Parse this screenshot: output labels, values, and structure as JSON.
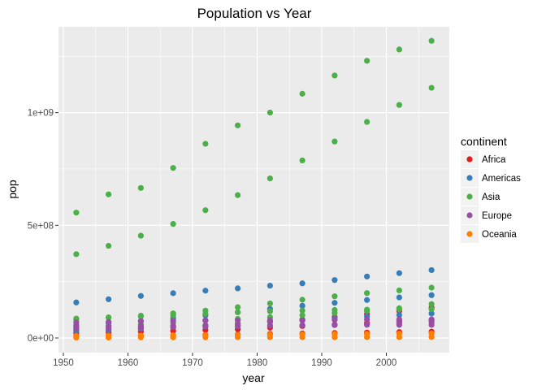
{
  "chart_data": {
    "type": "scatter",
    "title": "Population vs Year",
    "xlabel": "year",
    "ylabel": "pop",
    "xlim": [
      1949.25,
      2009.75
    ],
    "ylim": [
      -65000000,
      1381000000
    ],
    "x_ticks": [
      {
        "value": 1950,
        "label": "1950"
      },
      {
        "value": 1960,
        "label": "1960"
      },
      {
        "value": 1970,
        "label": "1970"
      },
      {
        "value": 1980,
        "label": "1980"
      },
      {
        "value": 1990,
        "label": "1990"
      },
      {
        "value": 2000,
        "label": "2000"
      }
    ],
    "y_ticks": [
      {
        "value": 0,
        "label": "0e+00"
      },
      {
        "value": 500000000,
        "label": "5e+08"
      },
      {
        "value": 1000000000,
        "label": "1e+09"
      }
    ],
    "grid": true,
    "legend_position": "right",
    "legend_title": "continent",
    "colors": {
      "Africa": "#e41a1c",
      "Americas": "#377eb8",
      "Asia": "#4daf4a",
      "Europe": "#984ea3",
      "Oceania": "#ff7f00",
      "panel": "#ebebeb",
      "grid_major": "#ffffff"
    },
    "series": [
      {
        "name": "Africa",
        "x": [
          1952,
          1952,
          1952,
          1957,
          1957,
          1957,
          1962,
          1962,
          1962,
          1967,
          1967,
          1967,
          1972,
          1972,
          1972,
          1977,
          1977,
          1977,
          1982,
          1982,
          1982,
          1987,
          1987,
          1987,
          1992,
          1992,
          1992,
          1997,
          1997,
          1997,
          2002,
          2002,
          2002,
          2007,
          2007,
          2007
        ],
        "y": [
          33100000,
          22200000,
          9000000,
          37000000,
          25000000,
          10000000,
          41900000,
          28200000,
          11000000,
          47300000,
          31700000,
          12300000,
          53700000,
          35600000,
          14000000,
          62200000,
          38800000,
          16000000,
          73000000,
          45700000,
          18000000,
          81600000,
          52800000,
          20000000,
          93400000,
          59400000,
          22000000,
          106200000,
          66100000,
          24000000,
          119900000,
          73300000,
          26000000,
          135000000,
          80300000,
          28000000
        ]
      },
      {
        "name": "Americas",
        "x": [
          1952,
          1952,
          1952,
          1957,
          1957,
          1957,
          1962,
          1962,
          1962,
          1967,
          1967,
          1967,
          1972,
          1972,
          1972,
          1977,
          1977,
          1977,
          1982,
          1982,
          1982,
          1987,
          1987,
          1987,
          1992,
          1992,
          1992,
          1997,
          1997,
          1997,
          2002,
          2002,
          2002,
          2007,
          2007,
          2007
        ],
        "y": [
          157600000,
          56600000,
          30100000,
          171900000,
          65600000,
          35000000,
          186500000,
          76000000,
          41100000,
          198700000,
          88000000,
          47900000,
          209900000,
          100800000,
          55300000,
          220200000,
          114300000,
          63800000,
          232200000,
          128900000,
          71600000,
          242300000,
          142900000,
          80100000,
          256900000,
          155900000,
          88100000,
          272900000,
          168500000,
          95900000,
          287700000,
          179900000,
          102500000,
          301100000,
          190000000,
          108700000
        ]
      },
      {
        "name": "Asia",
        "x": [
          1952,
          1952,
          1952,
          1952,
          1952,
          1957,
          1957,
          1957,
          1957,
          1957,
          1962,
          1962,
          1962,
          1962,
          1962,
          1967,
          1967,
          1967,
          1967,
          1967,
          1972,
          1972,
          1972,
          1972,
          1972,
          1977,
          1977,
          1977,
          1977,
          1977,
          1982,
          1982,
          1982,
          1982,
          1982,
          1987,
          1987,
          1987,
          1987,
          1987,
          1992,
          1992,
          1992,
          1992,
          1992,
          1997,
          1997,
          1997,
          1997,
          1997,
          2002,
          2002,
          2002,
          2002,
          2002,
          2007,
          2007,
          2007,
          2007,
          2007
        ],
        "y": [
          556300000,
          372000000,
          86100000,
          82100000,
          46900000,
          637400000,
          409000000,
          91600000,
          90000000,
          53500000,
          665800000,
          454000000,
          95800000,
          99000000,
          60600000,
          754600000,
          506000000,
          100800000,
          109300000,
          67600000,
          862000000,
          567000000,
          107200000,
          121300000,
          76600000,
          943500000,
          634000000,
          113900000,
          136700000,
          84400000,
          1000300000,
          708000000,
          118500000,
          153300000,
          92300000,
          1084000000,
          788000000,
          122100000,
          169900000,
          101300000,
          1164900000,
          872000000,
          124300000,
          184800000,
          110800000,
          1230100000,
          959000000,
          125300000,
          199300000,
          120000000,
          1280400000,
          1034200000,
          127100000,
          211100000,
          132000000,
          1318700000,
          1110400000,
          127500000,
          223500000,
          150400000
        ]
      },
      {
        "name": "Europe",
        "x": [
          1952,
          1952,
          1952,
          1957,
          1957,
          1957,
          1962,
          1962,
          1962,
          1967,
          1967,
          1967,
          1972,
          1972,
          1972,
          1977,
          1977,
          1977,
          1982,
          1982,
          1982,
          1987,
          1987,
          1987,
          1992,
          1992,
          1992,
          1997,
          1997,
          1997,
          2002,
          2002,
          2002,
          2007,
          2007,
          2007
        ],
        "y": [
          69100000,
          50400000,
          42500000,
          71000000,
          51400000,
          44300000,
          73700000,
          52500000,
          46100000,
          76400000,
          54700000,
          47600000,
          78700000,
          56100000,
          49700000,
          78200000,
          56300000,
          51400000,
          78300000,
          56300000,
          53800000,
          77700000,
          56700000,
          56000000,
          80600000,
          57300000,
          58500000,
          82000000,
          58400000,
          61800000,
          82300000,
          58100000,
          66900000,
          82400000,
          58200000,
          71200000
        ]
      },
      {
        "name": "Oceania",
        "x": [
          1952,
          1952,
          1957,
          1957,
          1962,
          1962,
          1967,
          1967,
          1972,
          1972,
          1977,
          1977,
          1982,
          1982,
          1987,
          1987,
          1992,
          1992,
          1997,
          1997,
          2002,
          2002,
          2007,
          2007
        ],
        "y": [
          8700000,
          1900000,
          9700000,
          2100000,
          10800000,
          2500000,
          11900000,
          2700000,
          13200000,
          2900000,
          14100000,
          3200000,
          15200000,
          3200000,
          16300000,
          3300000,
          17500000,
          3400000,
          18600000,
          3700000,
          19500000,
          3900000,
          20400000,
          4100000
        ]
      }
    ]
  }
}
